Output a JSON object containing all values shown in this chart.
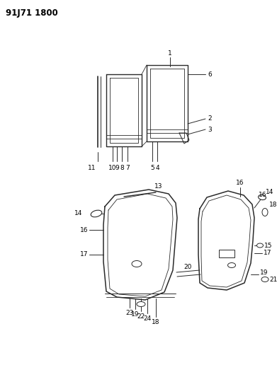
{
  "title": "91J71 1800",
  "bg_color": "#ffffff",
  "line_color": "#2a2a2a",
  "text_color": "#000000",
  "title_fontsize": 8.5,
  "label_fontsize": 6.5,
  "fig_width": 3.91,
  "fig_height": 5.33,
  "dpi": 100
}
